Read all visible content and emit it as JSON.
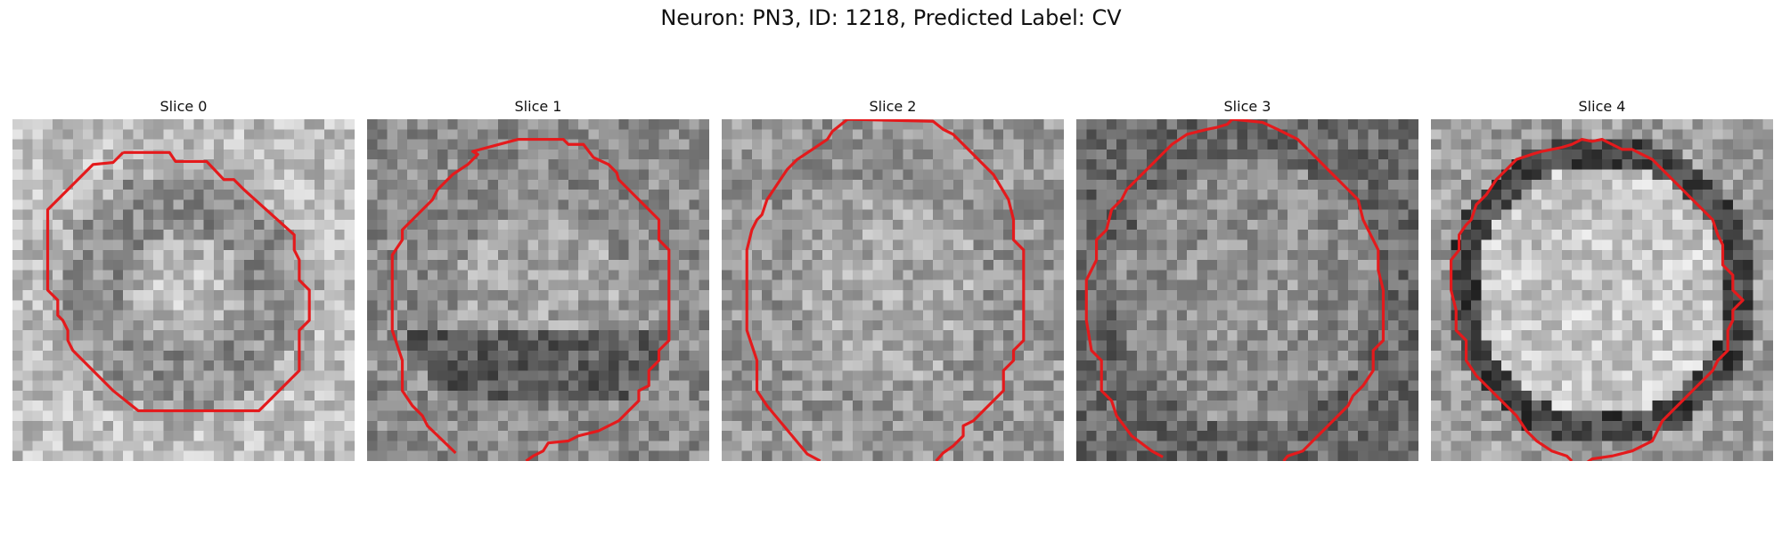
{
  "figure": {
    "title": "Neuron: PN3, ID: 1218, Predicted Label: CV"
  },
  "contour_color": "#e41a1c",
  "colormap": "gray",
  "slices": [
    {
      "title": "Slice 0"
    },
    {
      "title": "Slice 1"
    },
    {
      "title": "Slice 2"
    },
    {
      "title": "Slice 3"
    },
    {
      "title": "Slice 4"
    }
  ]
}
